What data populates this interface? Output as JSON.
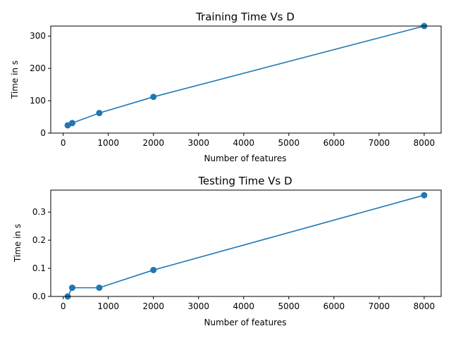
{
  "chart_data": [
    {
      "type": "line",
      "title": "Training Time Vs D",
      "xlabel": "Number of features",
      "ylabel": "Time in s",
      "x": [
        100,
        200,
        800,
        2000,
        8000
      ],
      "y": [
        24,
        31,
        62,
        112,
        331
      ],
      "xlim": [
        -276,
        8376
      ],
      "ylim": [
        0,
        331
      ],
      "xticks": [
        0,
        1000,
        2000,
        3000,
        4000,
        5000,
        6000,
        7000,
        8000
      ],
      "yticks": [
        0,
        100,
        200,
        300
      ],
      "color": "#1f77b4",
      "grid": false
    },
    {
      "type": "line",
      "title": "Testing Time Vs D",
      "xlabel": "Number of features",
      "ylabel": "Time in s",
      "x": [
        100,
        200,
        800,
        2000,
        8000
      ],
      "y": [
        0.0,
        0.031,
        0.031,
        0.094,
        0.36
      ],
      "xlim": [
        -276,
        8376
      ],
      "ylim": [
        0,
        0.378
      ],
      "xticks": [
        0,
        1000,
        2000,
        3000,
        4000,
        5000,
        6000,
        7000,
        8000
      ],
      "yticks": [
        0.0,
        0.1,
        0.2,
        0.3
      ],
      "ytick_decimals": 1,
      "color": "#1f77b4",
      "grid": false
    }
  ]
}
